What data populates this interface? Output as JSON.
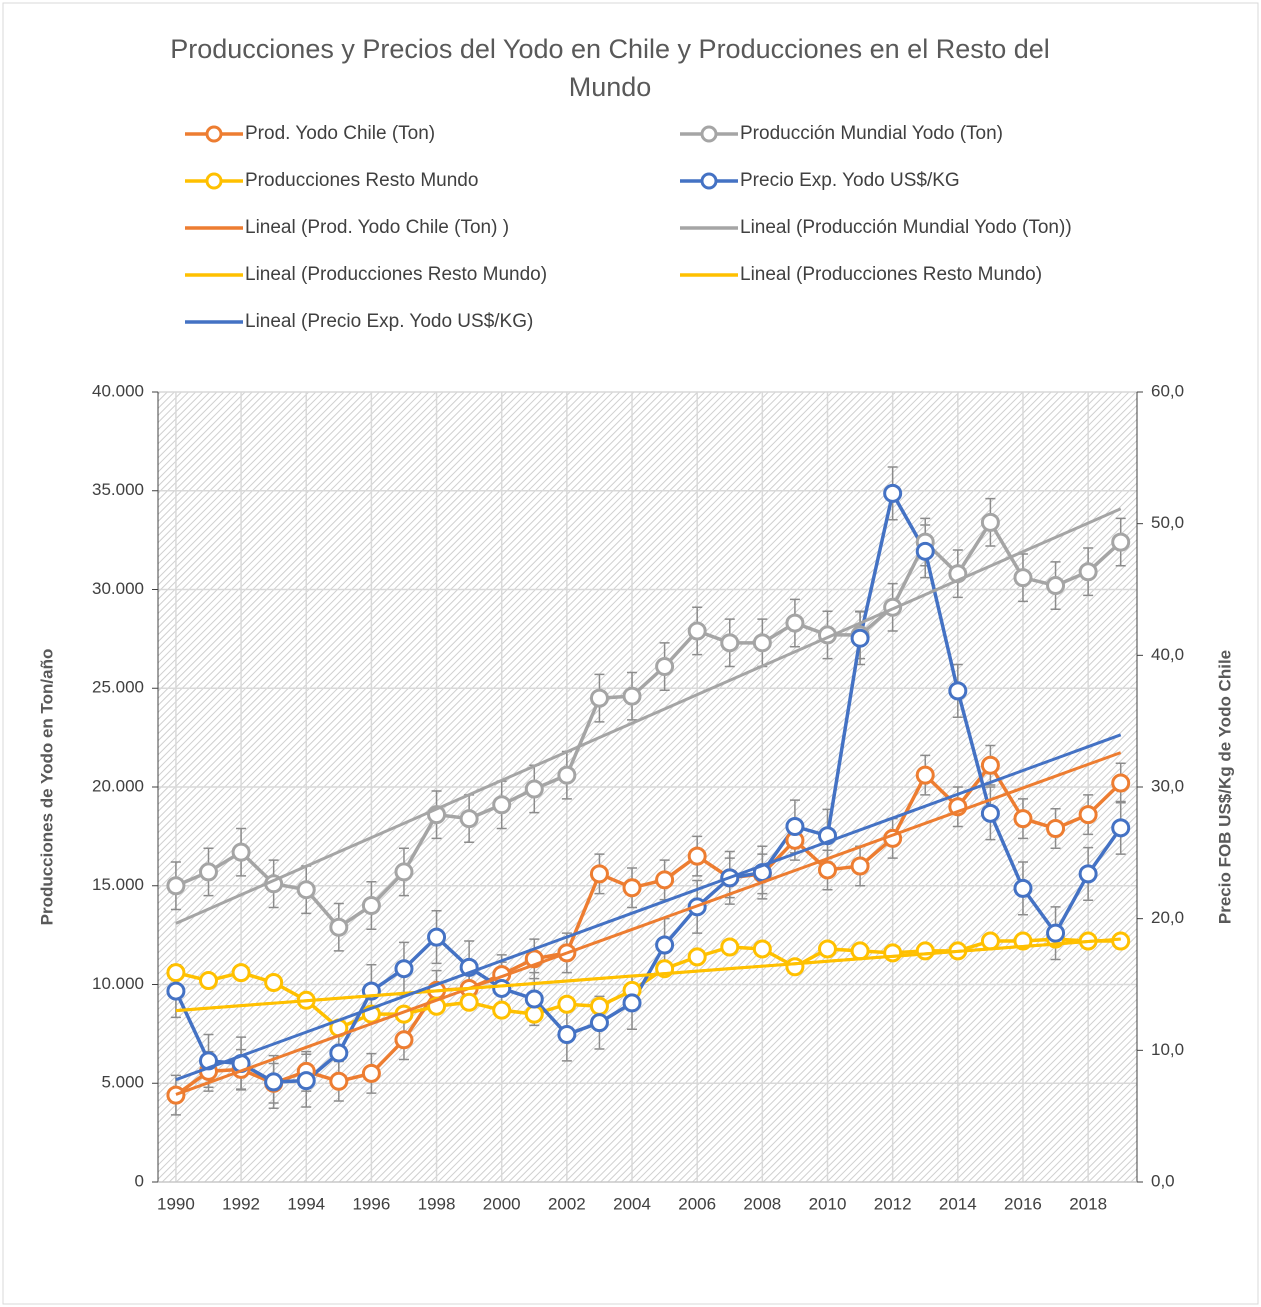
{
  "chart_data": {
    "type": "line",
    "title": "Producciones y Precios del Yodo en Chile y Producciones en el Resto del Mundo",
    "y_label": "Producciones de Yodo en Ton/año",
    "y2_label": "Precio FOB US$/Kg de Yodo Chile",
    "x": [
      1990,
      1991,
      1992,
      1993,
      1994,
      1995,
      1996,
      1997,
      1998,
      1999,
      2000,
      2001,
      2002,
      2003,
      2004,
      2005,
      2006,
      2007,
      2008,
      2009,
      2010,
      2011,
      2012,
      2013,
      2014,
      2015,
      2016,
      2017,
      2018,
      2019
    ],
    "xlim": [
      1989.45,
      2019.5
    ],
    "xticks": [
      1990,
      1992,
      1994,
      1996,
      1998,
      2000,
      2002,
      2004,
      2006,
      2008,
      2010,
      2012,
      2014,
      2016,
      2018
    ],
    "ylim": [
      0,
      40000
    ],
    "yticks": [
      {
        "value": 0,
        "label": "0"
      },
      {
        "value": 5000,
        "label": "5.000"
      },
      {
        "value": 10000,
        "label": "10.000"
      },
      {
        "value": 15000,
        "label": "15.000"
      },
      {
        "value": 20000,
        "label": "20.000"
      },
      {
        "value": 25000,
        "label": "25.000"
      },
      {
        "value": 30000,
        "label": "30.000"
      },
      {
        "value": 35000,
        "label": "35.000"
      },
      {
        "value": 40000,
        "label": "40.000"
      }
    ],
    "y2lim": [
      0,
      60
    ],
    "y2ticks": [
      {
        "value": 0,
        "label": "0,0"
      },
      {
        "value": 10,
        "label": "10,0"
      },
      {
        "value": 20,
        "label": "20,0"
      },
      {
        "value": 30,
        "label": "30,0"
      },
      {
        "value": 40,
        "label": "40,0"
      },
      {
        "value": 50,
        "label": "50,0"
      },
      {
        "value": 60,
        "label": "60,0"
      }
    ],
    "grid": true,
    "series": [
      {
        "name": "Prod. Yodo Chile (Ton)",
        "color": "#ed7d31",
        "error": 1000,
        "values": [
          4400,
          5600,
          5700,
          5000,
          5600,
          5100,
          5500,
          7200,
          9700,
          9800,
          10500,
          11300,
          11600,
          15600,
          14900,
          15300,
          16500,
          15400,
          15600,
          17300,
          15800,
          16000,
          17400,
          20600,
          19000,
          21100,
          18400,
          17900,
          18600,
          20200
        ]
      },
      {
        "name": "Producción Mundial Yodo (Ton)",
        "color": "#a5a5a5",
        "error": 1200,
        "values": [
          15000,
          15700,
          16700,
          15100,
          14800,
          12900,
          14000,
          15700,
          18600,
          18400,
          19100,
          19900,
          20600,
          24500,
          24600,
          26100,
          27900,
          27300,
          27300,
          28300,
          27700,
          27700,
          29100,
          32400,
          30800,
          33400,
          30600,
          30200,
          30900,
          32400
        ]
      },
      {
        "name": "Producciones Resto Mundo",
        "color": "#ffc000",
        "values": [
          10600,
          10200,
          10600,
          10100,
          9200,
          7800,
          8500,
          8500,
          8900,
          9100,
          8700,
          8500,
          9000,
          8900,
          9700,
          10800,
          11400,
          11900,
          11800,
          10900,
          11800,
          11700,
          11600,
          11700,
          11700,
          12200,
          12200,
          12300,
          12200,
          12200
        ]
      },
      {
        "name": "Precio Exp. Yodo US$/KG",
        "color": "#4472c4",
        "axis": "y2",
        "error": 2,
        "values": [
          14.5,
          9.2,
          9.0,
          7.6,
          7.7,
          9.8,
          14.5,
          16.2,
          18.6,
          16.3,
          14.7,
          13.9,
          11.2,
          12.1,
          13.6,
          18.0,
          20.9,
          23.1,
          23.5,
          27.0,
          26.3,
          41.3,
          52.3,
          47.9,
          37.3,
          28.0,
          22.3,
          18.9,
          23.4,
          26.9
        ]
      }
    ],
    "trendlines": [
      {
        "name": "Lineal (Prod. Yodo Chile (Ton) )",
        "series": 0,
        "color": "#ed7d31"
      },
      {
        "name": "Lineal (Producción Mundial Yodo (Ton))",
        "series": 1,
        "color": "#a5a5a5"
      },
      {
        "name": "Lineal (Producciones Resto Mundo)",
        "series": 2,
        "color": "#ffc000"
      },
      {
        "name": "Lineal (Producciones Resto Mundo)",
        "series": 2,
        "color": "#ffc000"
      },
      {
        "name": "Lineal (Precio Exp. Yodo US$/KG)",
        "series": 3,
        "color": "#4472c4"
      }
    ]
  }
}
